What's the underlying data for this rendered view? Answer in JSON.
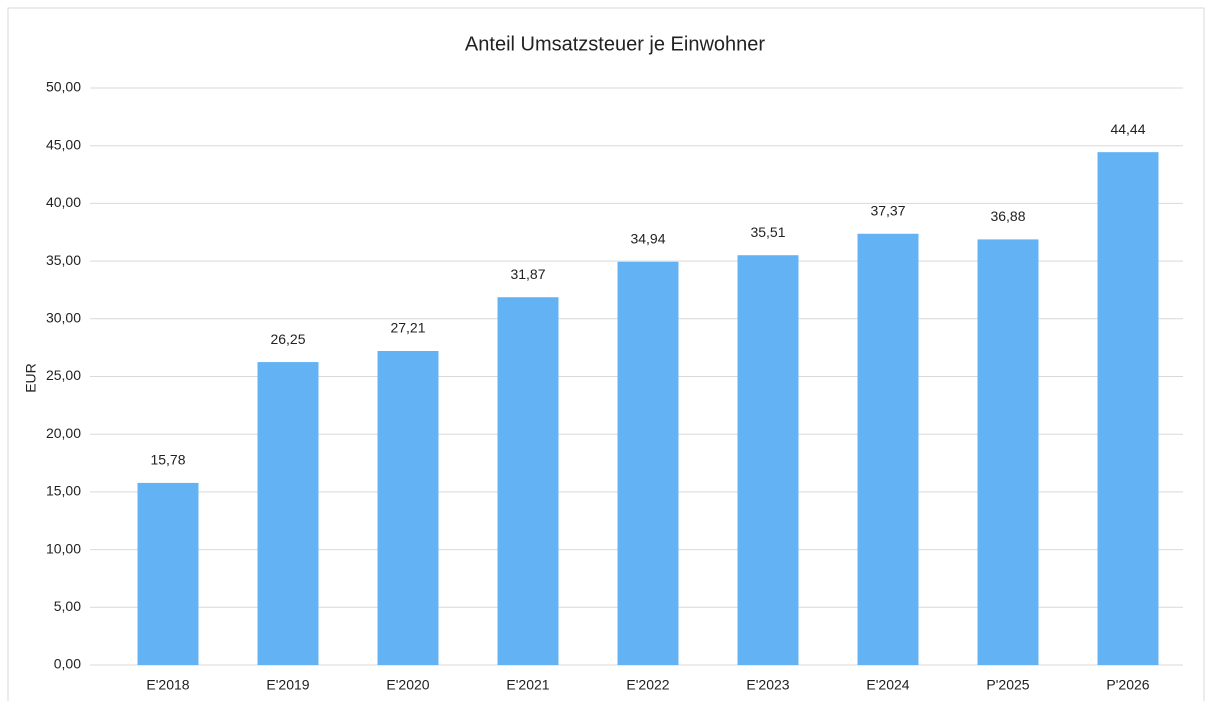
{
  "chart_data": {
    "type": "bar",
    "title": "Anteil Umsatzsteuer je Einwohner",
    "y_label": "EUR",
    "categories": [
      "E'2018",
      "E'2019",
      "E'2020",
      "E'2021",
      "E'2022",
      "E'2023",
      "E'2024",
      "P'2025",
      "P'2026"
    ],
    "values": [
      15.78,
      26.25,
      27.21,
      31.87,
      34.94,
      35.51,
      37.37,
      36.88,
      44.44
    ],
    "value_labels": [
      "15,78",
      "26,25",
      "27,21",
      "31,87",
      "34,94",
      "35,51",
      "37,37",
      "36,88",
      "44,44"
    ],
    "color": "#63b3f4",
    "ylim": [
      0,
      50
    ],
    "yticks": [
      {
        "value": 0,
        "label": "0,00"
      },
      {
        "value": 5,
        "label": "5,00"
      },
      {
        "value": 10,
        "label": "10,00"
      },
      {
        "value": 15,
        "label": "15,00"
      },
      {
        "value": 20,
        "label": "20,00"
      },
      {
        "value": 25,
        "label": "25,00"
      },
      {
        "value": 30,
        "label": "30,00"
      },
      {
        "value": 35,
        "label": "35,00"
      },
      {
        "value": 40,
        "label": "40,00"
      },
      {
        "value": 45,
        "label": "45,00"
      },
      {
        "value": 50,
        "label": "50,00"
      }
    ],
    "grid": true
  }
}
